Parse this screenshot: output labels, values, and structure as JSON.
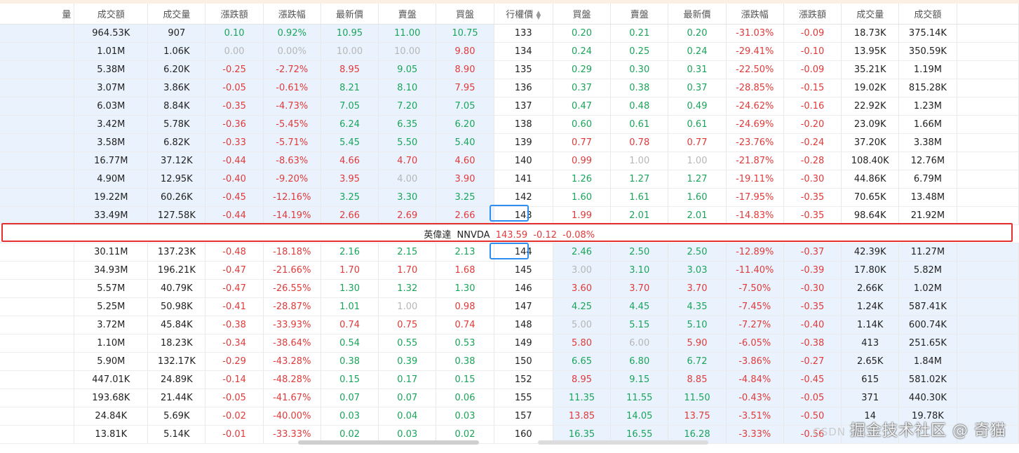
{
  "headers": {
    "c0": "量",
    "c1": "成交額",
    "c2": "成交量",
    "c3": "漲跌額",
    "c4": "漲跌幅",
    "c5": "最新價",
    "c6": "賣盤",
    "c7": "買盤",
    "strike": "行權價",
    "p1": "買盤",
    "p2": "賣盤",
    "p3": "最新價",
    "p4": "漲跌幅",
    "p5": "漲跌額",
    "p6": "成交量",
    "p7": "成交額"
  },
  "underlying": {
    "name": "英偉達",
    "code": "NNVDA",
    "price": "143.59",
    "change": "-0.12",
    "change_pct": "-0.08%"
  },
  "rows_above": [
    {
      "call": [
        "964.53K",
        "907",
        "0.10",
        "0.92%",
        "10.95",
        "11.00",
        "10.75"
      ],
      "callc": [
        "",
        "",
        "up",
        "up",
        "up",
        "up",
        "up"
      ],
      "strike": "133",
      "put": [
        "0.20",
        "0.21",
        "0.20",
        "-31.03%",
        "-0.09",
        "18.73K",
        "375.14K"
      ],
      "putc": [
        "up",
        "up",
        "up",
        "down",
        "down",
        "",
        ""
      ]
    },
    {
      "call": [
        "1.01M",
        "1.06K",
        "0.00",
        "0.00%",
        "10.00",
        "10.00",
        "9.80"
      ],
      "callc": [
        "",
        "",
        "flat",
        "flat",
        "flat",
        "flat",
        "down"
      ],
      "strike": "134",
      "put": [
        "0.24",
        "0.25",
        "0.24",
        "-29.41%",
        "-0.10",
        "13.95K",
        "350.59K"
      ],
      "putc": [
        "up",
        "up",
        "up",
        "down",
        "down",
        "",
        ""
      ]
    },
    {
      "call": [
        "5.38M",
        "6.20K",
        "-0.25",
        "-2.72%",
        "8.95",
        "9.05",
        "8.90"
      ],
      "callc": [
        "",
        "",
        "down",
        "down",
        "down",
        "up",
        "down"
      ],
      "strike": "135",
      "put": [
        "0.29",
        "0.30",
        "0.31",
        "-22.50%",
        "-0.09",
        "35.21K",
        "1.19M"
      ],
      "putc": [
        "up",
        "up",
        "up",
        "down",
        "down",
        "",
        ""
      ]
    },
    {
      "call": [
        "3.07M",
        "3.86K",
        "-0.05",
        "-0.61%",
        "8.21",
        "8.10",
        "7.95"
      ],
      "callc": [
        "",
        "",
        "down",
        "down",
        "up",
        "up",
        "down"
      ],
      "strike": "136",
      "put": [
        "0.37",
        "0.38",
        "0.37",
        "-28.85%",
        "-0.15",
        "19.02K",
        "815.28K"
      ],
      "putc": [
        "up",
        "up",
        "up",
        "down",
        "down",
        "",
        ""
      ]
    },
    {
      "call": [
        "6.03M",
        "8.84K",
        "-0.35",
        "-4.73%",
        "7.05",
        "7.20",
        "7.05"
      ],
      "callc": [
        "",
        "",
        "down",
        "down",
        "up",
        "up",
        "up"
      ],
      "strike": "137",
      "put": [
        "0.47",
        "0.48",
        "0.49",
        "-24.62%",
        "-0.16",
        "22.92K",
        "1.23M"
      ],
      "putc": [
        "up",
        "up",
        "up",
        "down",
        "down",
        "",
        ""
      ]
    },
    {
      "call": [
        "3.42M",
        "5.78K",
        "-0.36",
        "-5.45%",
        "6.24",
        "6.35",
        "6.20"
      ],
      "callc": [
        "",
        "",
        "down",
        "down",
        "up",
        "up",
        "up"
      ],
      "strike": "138",
      "put": [
        "0.60",
        "0.61",
        "0.61",
        "-24.69%",
        "-0.20",
        "23.09K",
        "1.66M"
      ],
      "putc": [
        "up",
        "up",
        "up",
        "down",
        "down",
        "",
        ""
      ]
    },
    {
      "call": [
        "3.58M",
        "6.82K",
        "-0.33",
        "-5.71%",
        "5.45",
        "5.50",
        "5.40"
      ],
      "callc": [
        "",
        "",
        "down",
        "down",
        "up",
        "up",
        "up"
      ],
      "strike": "139",
      "put": [
        "0.77",
        "0.78",
        "0.77",
        "-23.76%",
        "-0.24",
        "37.20K",
        "3.38M"
      ],
      "putc": [
        "down",
        "down",
        "down",
        "down",
        "down",
        "",
        ""
      ]
    },
    {
      "call": [
        "16.77M",
        "37.12K",
        "-0.44",
        "-8.63%",
        "4.66",
        "4.70",
        "4.60"
      ],
      "callc": [
        "",
        "",
        "down",
        "down",
        "down",
        "down",
        "down"
      ],
      "strike": "140",
      "put": [
        "0.99",
        "1.00",
        "1.00",
        "-21.87%",
        "-0.28",
        "108.40K",
        "12.76M"
      ],
      "putc": [
        "down",
        "flat",
        "flat",
        "down",
        "down",
        "",
        ""
      ]
    },
    {
      "call": [
        "4.90M",
        "12.95K",
        "-0.40",
        "-9.20%",
        "3.95",
        "4.00",
        "3.90"
      ],
      "callc": [
        "",
        "",
        "down",
        "down",
        "down",
        "flat",
        "down"
      ],
      "strike": "141",
      "put": [
        "1.26",
        "1.27",
        "1.27",
        "-19.11%",
        "-0.30",
        "44.86K",
        "6.79M"
      ],
      "putc": [
        "up",
        "up",
        "up",
        "down",
        "down",
        "",
        ""
      ]
    },
    {
      "call": [
        "19.22M",
        "60.26K",
        "-0.45",
        "-12.16%",
        "3.25",
        "3.30",
        "3.25"
      ],
      "callc": [
        "",
        "",
        "down",
        "down",
        "up",
        "up",
        "up"
      ],
      "strike": "142",
      "put": [
        "1.60",
        "1.61",
        "1.60",
        "-17.95%",
        "-0.35",
        "70.65K",
        "13.48M"
      ],
      "putc": [
        "up",
        "up",
        "up",
        "down",
        "down",
        "",
        ""
      ]
    },
    {
      "call": [
        "33.49M",
        "127.58K",
        "-0.44",
        "-14.19%",
        "2.66",
        "2.69",
        "2.66"
      ],
      "callc": [
        "",
        "",
        "down",
        "down",
        "down",
        "down",
        "down"
      ],
      "strike": "143",
      "put": [
        "1.99",
        "2.01",
        "2.01",
        "-14.83%",
        "-0.35",
        "98.64K",
        "21.92M"
      ],
      "putc": [
        "down",
        "up",
        "up",
        "down",
        "down",
        "",
        ""
      ]
    }
  ],
  "rows_below": [
    {
      "call": [
        "30.11M",
        "137.23K",
        "-0.48",
        "-18.18%",
        "2.16",
        "2.15",
        "2.13"
      ],
      "callc": [
        "",
        "",
        "down",
        "down",
        "up",
        "up",
        "up"
      ],
      "strike": "144",
      "put": [
        "2.46",
        "2.50",
        "2.50",
        "-12.89%",
        "-0.37",
        "42.39K",
        "11.27M"
      ],
      "putc": [
        "up",
        "up",
        "up",
        "down",
        "down",
        "",
        ""
      ]
    },
    {
      "call": [
        "34.93M",
        "196.21K",
        "-0.47",
        "-21.66%",
        "1.70",
        "1.70",
        "1.68"
      ],
      "callc": [
        "",
        "",
        "down",
        "down",
        "down",
        "down",
        "down"
      ],
      "strike": "145",
      "put": [
        "3.00",
        "3.10",
        "3.03",
        "-11.40%",
        "-0.39",
        "17.80K",
        "5.82M"
      ],
      "putc": [
        "flat",
        "up",
        "up",
        "down",
        "down",
        "",
        ""
      ]
    },
    {
      "call": [
        "5.57M",
        "40.79K",
        "-0.47",
        "-26.55%",
        "1.30",
        "1.32",
        "1.30"
      ],
      "callc": [
        "",
        "",
        "down",
        "down",
        "up",
        "up",
        "up"
      ],
      "strike": "146",
      "put": [
        "3.60",
        "3.70",
        "3.70",
        "-7.50%",
        "-0.30",
        "2.66K",
        "1.02M"
      ],
      "putc": [
        "down",
        "down",
        "down",
        "down",
        "down",
        "",
        ""
      ]
    },
    {
      "call": [
        "5.25M",
        "50.98K",
        "-0.41",
        "-28.87%",
        "1.01",
        "1.00",
        "0.98"
      ],
      "callc": [
        "",
        "",
        "down",
        "down",
        "up",
        "flat",
        "down"
      ],
      "strike": "147",
      "put": [
        "4.25",
        "4.45",
        "4.35",
        "-7.45%",
        "-0.35",
        "1.24K",
        "587.41K"
      ],
      "putc": [
        "up",
        "up",
        "up",
        "down",
        "down",
        "",
        ""
      ]
    },
    {
      "call": [
        "3.72M",
        "45.84K",
        "-0.38",
        "-33.93%",
        "0.74",
        "0.75",
        "0.74"
      ],
      "callc": [
        "",
        "",
        "down",
        "down",
        "down",
        "down",
        "down"
      ],
      "strike": "148",
      "put": [
        "5.00",
        "5.15",
        "5.10",
        "-7.27%",
        "-0.40",
        "1.14K",
        "600.74K"
      ],
      "putc": [
        "flat",
        "up",
        "up",
        "down",
        "down",
        "",
        ""
      ]
    },
    {
      "call": [
        "1.10M",
        "18.23K",
        "-0.34",
        "-38.64%",
        "0.54",
        "0.55",
        "0.53"
      ],
      "callc": [
        "",
        "",
        "down",
        "down",
        "up",
        "up",
        "up"
      ],
      "strike": "149",
      "put": [
        "5.80",
        "6.00",
        "5.90",
        "-6.05%",
        "-0.38",
        "413",
        "251.65K"
      ],
      "putc": [
        "down",
        "flat",
        "down",
        "down",
        "down",
        "",
        ""
      ]
    },
    {
      "call": [
        "5.90M",
        "132.17K",
        "-0.29",
        "-43.28%",
        "0.38",
        "0.39",
        "0.38"
      ],
      "callc": [
        "",
        "",
        "down",
        "down",
        "up",
        "up",
        "up"
      ],
      "strike": "150",
      "put": [
        "6.65",
        "6.80",
        "6.72",
        "-3.86%",
        "-0.27",
        "2.65K",
        "1.84M"
      ],
      "putc": [
        "up",
        "up",
        "up",
        "down",
        "down",
        "",
        ""
      ]
    },
    {
      "call": [
        "447.01K",
        "24.89K",
        "-0.14",
        "-48.28%",
        "0.15",
        "0.17",
        "0.15"
      ],
      "callc": [
        "",
        "",
        "down",
        "down",
        "up",
        "up",
        "up"
      ],
      "strike": "152",
      "put": [
        "8.95",
        "9.15",
        "8.85",
        "-4.84%",
        "-0.45",
        "615",
        "581.02K"
      ],
      "putc": [
        "down",
        "up",
        "down",
        "down",
        "down",
        "",
        ""
      ]
    },
    {
      "call": [
        "193.68K",
        "21.44K",
        "-0.05",
        "-41.67%",
        "0.07",
        "0.07",
        "0.06"
      ],
      "callc": [
        "",
        "",
        "down",
        "down",
        "up",
        "up",
        "up"
      ],
      "strike": "155",
      "put": [
        "11.35",
        "11.55",
        "11.50",
        "-0.43%",
        "-0.05",
        "371",
        "440.30K"
      ],
      "putc": [
        "up",
        "up",
        "up",
        "down",
        "down",
        "",
        ""
      ]
    },
    {
      "call": [
        "24.84K",
        "5.69K",
        "-0.02",
        "-40.00%",
        "0.03",
        "0.04",
        "0.03"
      ],
      "callc": [
        "",
        "",
        "down",
        "down",
        "up",
        "up",
        "up"
      ],
      "strike": "157",
      "put": [
        "13.85",
        "14.05",
        "13.75",
        "-3.51%",
        "-0.50",
        "14",
        "19.78K"
      ],
      "putc": [
        "down",
        "up",
        "down",
        "down",
        "down",
        "",
        ""
      ]
    },
    {
      "call": [
        "13.81K",
        "5.14K",
        "-0.01",
        "-33.33%",
        "0.02",
        "0.03",
        "0.02"
      ],
      "callc": [
        "",
        "",
        "down",
        "down",
        "up",
        "up",
        "up"
      ],
      "strike": "160",
      "put": [
        "16.35",
        "16.55",
        "16.28",
        "-3.33%",
        "-0.56",
        "",
        ""
      ],
      "putc": [
        "up",
        "up",
        "up",
        "down",
        "down",
        "",
        ""
      ]
    }
  ],
  "atm_strikes": [
    "143",
    "144"
  ],
  "watermark": {
    "prefix": "CSDN",
    "text": "掘金技术社区 @ 奇猫"
  },
  "colors": {
    "up": "#1aa45a",
    "down": "#e03a3a",
    "flat": "#b6b6b6",
    "highlight": "#eaf3fd",
    "border_red": "#e53030",
    "border_blue": "#2d8ef0"
  },
  "icons": {
    "sort": "sort-updown-icon"
  }
}
